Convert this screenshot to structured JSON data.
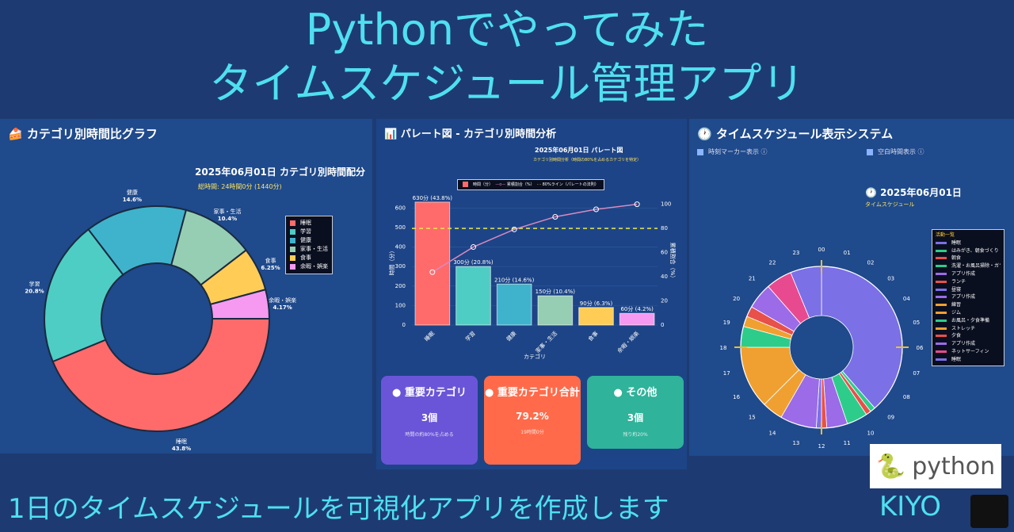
{
  "header": {
    "line1": "Pythonでやってみた",
    "line2": "タイムスケジュール管理アプリ"
  },
  "footer": {
    "text": "1日のタイムスケジュールを可視化アプリを作成します",
    "author": "KIYO",
    "python_logo": "python"
  },
  "colors": {
    "title": "#4fe0f0",
    "background": "#1d3b72"
  },
  "donut_panel": {
    "title": "カテゴリ別時間比グラフ",
    "icon": "cake-icon",
    "chart_title": "2025年06月01日 カテゴリ別時間配分",
    "total": "総時間: 24時間0分 (1440分)"
  },
  "pareto_panel": {
    "title": "パレート図 - カテゴリ別時間分析",
    "icon": "chart-icon",
    "chart_title": "2025年06月01日 パレート図",
    "chart_subtitle": "カテゴリ別時間分析（時間の80%を占めるカテゴリを特定）",
    "legend": [
      "時間（分）",
      "累積割合（%）",
      "80%ライン（パレートの法則）"
    ],
    "cards": [
      {
        "title": "重要カテゴリ",
        "value": "3個",
        "note": "時間の約80%を占める",
        "icon": "target-icon",
        "color": "#6a55d8"
      },
      {
        "title": "重要カテゴリ合計",
        "value": "79.2%",
        "note": "19時間0分",
        "icon": "stopwatch-icon",
        "color": "#ff6b4a"
      },
      {
        "title": "その他",
        "value": "3個",
        "note": "残り約20%",
        "icon": "chart-icon",
        "color": "#2fb39a"
      }
    ]
  },
  "schedule_panel": {
    "title": "タイムスケジュール表示システム",
    "icon": "clock-icon",
    "checkbox1": "時刻マーカー表示",
    "checkbox2": "空白時間表示",
    "chart_title": "2025年06月01日",
    "chart_subtitle": "タイムスケジュール",
    "legend_title": "活動一覧",
    "hour_labels": [
      "00",
      "06",
      "12",
      "18"
    ]
  },
  "chart_data": [
    {
      "type": "pie",
      "hole": true,
      "title": "2025年06月01日 カテゴリ別時間配分",
      "categories": [
        "睡眠",
        "学習",
        "健康",
        "家事・生活",
        "食事",
        "余暇・娯楽"
      ],
      "values": [
        43.8,
        20.8,
        14.6,
        10.4,
        6.25,
        4.17
      ],
      "labels": [
        "43.8%",
        "20.8%",
        "14.6%",
        "10.4%",
        "6.25%",
        "4.17%"
      ],
      "colors": [
        "#ff6b6b",
        "#4ecdc4",
        "#3fb3cc",
        "#96ceb4",
        "#ffcd56",
        "#f59af0"
      ],
      "legend": "right"
    },
    {
      "type": "bar",
      "title": "2025年06月01日 パレート図",
      "xlabel": "カテゴリ",
      "ylabel": "時間（分）",
      "y2label": "累積割合（%）",
      "categories": [
        "睡眠",
        "学習",
        "健康",
        "家事・生活",
        "食事",
        "余暇・娯楽"
      ],
      "values": [
        630,
        300,
        210,
        150,
        90,
        60
      ],
      "bar_labels": [
        "630分 (43.8%)",
        "300分 (20.8%)",
        "210分 (14.6%)",
        "150分 (10.4%)",
        "90分 (6.3%)",
        "60分 (4.2%)"
      ],
      "cumulative": [
        43.8,
        64.6,
        79.2,
        89.6,
        95.8,
        100
      ],
      "ylim": [
        0,
        650
      ],
      "yticks": [
        0,
        100,
        200,
        300,
        400,
        500,
        600
      ],
      "y2lim": [
        0,
        105
      ],
      "y2ticks": [
        0,
        20,
        40,
        60,
        80,
        100
      ],
      "threshold": 80,
      "colors": [
        "#ff6b6b",
        "#4ecdc4",
        "#3fb3cc",
        "#96ceb4",
        "#ffcd56",
        "#f59af0"
      ]
    },
    {
      "type": "pie",
      "subtype": "radial-schedule",
      "title": "2025年06月01日",
      "activities": [
        {
          "name": "睡眠",
          "start": "00:00",
          "end": "09:15",
          "color": "#7b70e6"
        },
        {
          "name": "はみがき、朝食づくり",
          "start": "09:15",
          "end": "09:30",
          "color": "#2ecc8a"
        },
        {
          "name": "朝食",
          "start": "09:30",
          "end": "09:45",
          "color": "#e8504a"
        },
        {
          "name": "洗濯・お風呂掃除・ガラ磨き",
          "start": "09:45",
          "end": "10:45",
          "color": "#2ecc8a"
        },
        {
          "name": "アプリ作成",
          "start": "10:45",
          "end": "11:45",
          "color": "#9b6be8"
        },
        {
          "name": "ランチ",
          "start": "11:45",
          "end": "12:00",
          "color": "#e8504a"
        },
        {
          "name": "昼寝",
          "start": "12:00",
          "end": "12:15",
          "color": "#7b70e6"
        },
        {
          "name": "アプリ作成",
          "start": "12:15",
          "end": "14:00",
          "color": "#9b6be8"
        },
        {
          "name": "練習",
          "start": "14:00",
          "end": "15:00",
          "color": "#f0a030"
        },
        {
          "name": "ジム",
          "start": "15:00",
          "end": "18:00",
          "color": "#f0a030"
        },
        {
          "name": "お風呂・夕食準備",
          "start": "18:00",
          "end": "19:00",
          "color": "#2ecc8a"
        },
        {
          "name": "ストレッチ",
          "start": "19:00",
          "end": "19:30",
          "color": "#f0a030"
        },
        {
          "name": "夕食",
          "start": "19:30",
          "end": "20:00",
          "color": "#e8504a"
        },
        {
          "name": "アプリ作成",
          "start": "20:00",
          "end": "21:15",
          "color": "#9b6be8"
        },
        {
          "name": "ネットサーフィン",
          "start": "21:15",
          "end": "22:30",
          "color": "#e84a8f"
        },
        {
          "name": "睡眠",
          "start": "22:30",
          "end": "24:00",
          "color": "#7b70e6"
        }
      ],
      "legend": "right"
    }
  ]
}
